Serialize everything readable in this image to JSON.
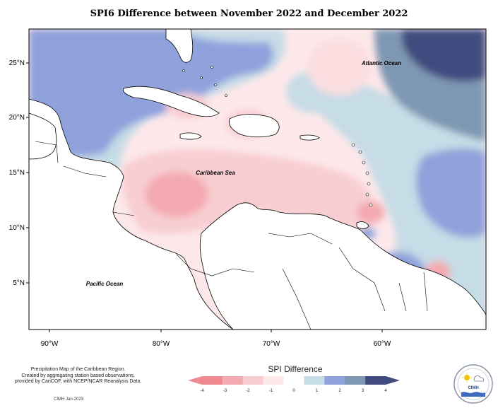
{
  "title": "SPI6 Difference between November 2022 and December 2022",
  "map": {
    "labels": {
      "atlantic": "Atlantic Ocean",
      "caribbean": "Caribbean Sea",
      "pacific": "Pacific Ocean"
    },
    "lat_ticks": [
      "25°N",
      "20°N",
      "15°N",
      "10°N",
      "5°N"
    ],
    "lon_ticks": [
      "90°W",
      "80°W",
      "70°W",
      "60°W"
    ]
  },
  "legend": {
    "title": "SPI Difference",
    "ticks": [
      "-4",
      "-3",
      "-2",
      "-1",
      "0",
      "1",
      "2",
      "3",
      "4"
    ],
    "colors": [
      "#ee8a90",
      "#f3aab0",
      "#f8cdd1",
      "#fde8ea",
      "#ffffff",
      "#c6dce6",
      "#8fa2dc",
      "#7e98b3",
      "#414b7f"
    ]
  },
  "credit": {
    "line1": "Precipitation Map of the Caribbean Region.",
    "line2": "Created by aggregating station based observations,",
    "line3": "provided by CariCOF, with NCEP/NCAR Reanalysis Data."
  },
  "stamp": "CIMH Jan-2023",
  "logo": {
    "text": "CIMH"
  }
}
